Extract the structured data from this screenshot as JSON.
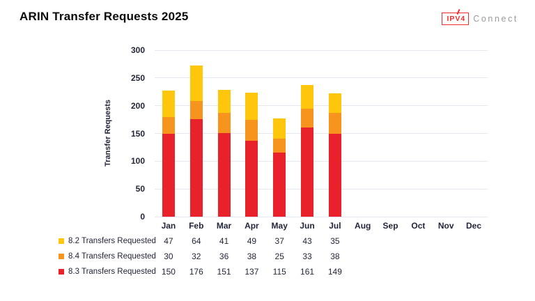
{
  "title": "ARIN Transfer Requests 2025",
  "logo": {
    "box_text": "IPV4",
    "suffix": "Connect"
  },
  "colors": {
    "yellow": "#FFC60B",
    "orange": "#F7941E",
    "red": "#E8212B",
    "grid": "#E4E7ED",
    "axis_text": "#23263A",
    "title_text": "#0B0B0C",
    "logo_red": "#EE2B2E",
    "logo_gray": "#9B9B9B",
    "background": "#FFFFFF"
  },
  "chart_data": {
    "type": "bar",
    "stacked": true,
    "title": "ARIN Transfer Requests 2025",
    "xlabel": "",
    "ylabel": "Transfer Requests",
    "ylim": [
      0,
      300
    ],
    "yticks": [
      0,
      50,
      100,
      150,
      200,
      250,
      300
    ],
    "grid": "horizontal",
    "legend_position": "bottom-left-table",
    "categories": [
      "Jan",
      "Feb",
      "Mar",
      "Apr",
      "May",
      "Jun",
      "Jul",
      "Aug",
      "Sep",
      "Oct",
      "Nov",
      "Dec"
    ],
    "series": [
      {
        "name": "8.2 Transfers Requested",
        "short": "8.2",
        "color": "#FFC60B",
        "values": [
          47,
          64,
          41,
          49,
          37,
          43,
          35,
          null,
          null,
          null,
          null,
          null
        ]
      },
      {
        "name": "8.4 Transfers Requested",
        "short": "8.4",
        "color": "#F7941E",
        "values": [
          30,
          32,
          36,
          38,
          25,
          33,
          38,
          null,
          null,
          null,
          null,
          null
        ]
      },
      {
        "name": "8.3 Transfers Requested",
        "short": "8.3",
        "color": "#E8212B",
        "values": [
          150,
          176,
          151,
          137,
          115,
          161,
          149,
          null,
          null,
          null,
          null,
          null
        ]
      }
    ],
    "stack_bottom_to_top": [
      2,
      1,
      0
    ]
  }
}
